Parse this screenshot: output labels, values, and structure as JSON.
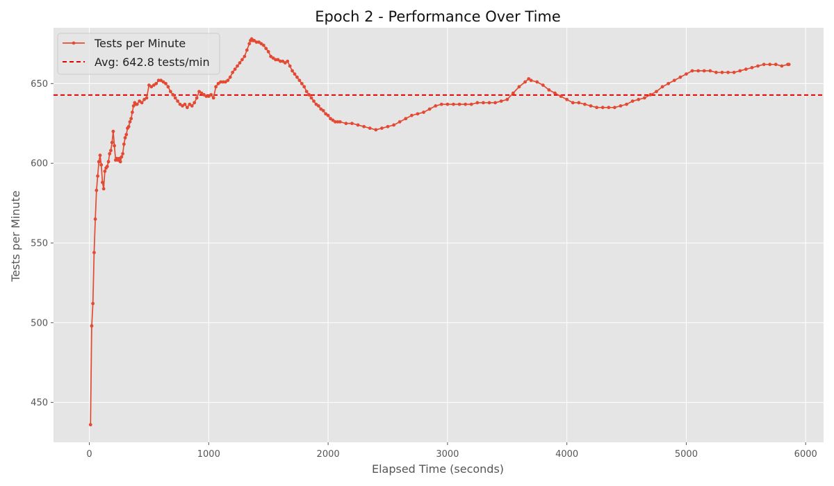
{
  "chart_data": {
    "type": "line",
    "title": "Epoch 2 - Performance Over Time",
    "xlabel": "Elapsed Time (seconds)",
    "ylabel": "Tests per Minute",
    "xlim": [
      -300,
      6150
    ],
    "ylim": [
      425,
      685
    ],
    "xticks": [
      0,
      1000,
      2000,
      3000,
      4000,
      5000,
      6000
    ],
    "yticks": [
      450,
      500,
      550,
      600,
      650
    ],
    "grid": true,
    "legend_position": "top-left",
    "colors": {
      "plot_background": "#e5e5e5",
      "grid": "#ffffff",
      "series_line": "#e24a33",
      "average_line": "#e60000"
    },
    "average": {
      "name": "Avg: 642.8 tests/min",
      "value": 642.8
    },
    "series": [
      {
        "name": "Tests per Minute",
        "points": [
          [
            10,
            436
          ],
          [
            20,
            498
          ],
          [
            30,
            512
          ],
          [
            40,
            544
          ],
          [
            50,
            565
          ],
          [
            60,
            583
          ],
          [
            70,
            592
          ],
          [
            80,
            601
          ],
          [
            90,
            605
          ],
          [
            100,
            599
          ],
          [
            110,
            588
          ],
          [
            120,
            584
          ],
          [
            130,
            595
          ],
          [
            140,
            597
          ],
          [
            150,
            598
          ],
          [
            160,
            601
          ],
          [
            170,
            606
          ],
          [
            180,
            608
          ],
          [
            190,
            613
          ],
          [
            200,
            620
          ],
          [
            210,
            611
          ],
          [
            220,
            602
          ],
          [
            230,
            603
          ],
          [
            240,
            602
          ],
          [
            250,
            603
          ],
          [
            260,
            601
          ],
          [
            270,
            604
          ],
          [
            280,
            606
          ],
          [
            290,
            612
          ],
          [
            300,
            616
          ],
          [
            310,
            618
          ],
          [
            320,
            622
          ],
          [
            330,
            623
          ],
          [
            340,
            626
          ],
          [
            350,
            628
          ],
          [
            360,
            632
          ],
          [
            370,
            636
          ],
          [
            380,
            638
          ],
          [
            390,
            637
          ],
          [
            400,
            637
          ],
          [
            420,
            639
          ],
          [
            440,
            638
          ],
          [
            460,
            640
          ],
          [
            480,
            641
          ],
          [
            500,
            649
          ],
          [
            520,
            648
          ],
          [
            540,
            649
          ],
          [
            560,
            650
          ],
          [
            580,
            652
          ],
          [
            600,
            652
          ],
          [
            620,
            651
          ],
          [
            640,
            650
          ],
          [
            660,
            648
          ],
          [
            680,
            645
          ],
          [
            700,
            643
          ],
          [
            720,
            641
          ],
          [
            740,
            639
          ],
          [
            760,
            637
          ],
          [
            780,
            636
          ],
          [
            800,
            637
          ],
          [
            820,
            635
          ],
          [
            840,
            637
          ],
          [
            860,
            636
          ],
          [
            880,
            638
          ],
          [
            900,
            641
          ],
          [
            920,
            645
          ],
          [
            940,
            644
          ],
          [
            960,
            643
          ],
          [
            980,
            642
          ],
          [
            1000,
            642
          ],
          [
            1020,
            643
          ],
          [
            1040,
            641
          ],
          [
            1060,
            648
          ],
          [
            1080,
            650
          ],
          [
            1100,
            651
          ],
          [
            1120,
            651
          ],
          [
            1140,
            651
          ],
          [
            1160,
            652
          ],
          [
            1180,
            654
          ],
          [
            1200,
            657
          ],
          [
            1220,
            659
          ],
          [
            1240,
            661
          ],
          [
            1260,
            663
          ],
          [
            1280,
            665
          ],
          [
            1300,
            667
          ],
          [
            1320,
            671
          ],
          [
            1340,
            675
          ],
          [
            1350,
            677
          ],
          [
            1360,
            678
          ],
          [
            1370,
            677
          ],
          [
            1380,
            677
          ],
          [
            1400,
            676
          ],
          [
            1420,
            676
          ],
          [
            1440,
            675
          ],
          [
            1460,
            674
          ],
          [
            1480,
            672
          ],
          [
            1500,
            670
          ],
          [
            1520,
            667
          ],
          [
            1540,
            666
          ],
          [
            1560,
            665
          ],
          [
            1580,
            665
          ],
          [
            1600,
            664
          ],
          [
            1620,
            664
          ],
          [
            1640,
            663
          ],
          [
            1660,
            664
          ],
          [
            1680,
            661
          ],
          [
            1700,
            658
          ],
          [
            1720,
            656
          ],
          [
            1740,
            654
          ],
          [
            1760,
            652
          ],
          [
            1780,
            650
          ],
          [
            1800,
            648
          ],
          [
            1820,
            645
          ],
          [
            1840,
            643
          ],
          [
            1860,
            641
          ],
          [
            1880,
            639
          ],
          [
            1900,
            637
          ],
          [
            1920,
            636
          ],
          [
            1940,
            634
          ],
          [
            1960,
            633
          ],
          [
            1980,
            631
          ],
          [
            2000,
            630
          ],
          [
            2020,
            628
          ],
          [
            2040,
            627
          ],
          [
            2060,
            626
          ],
          [
            2080,
            626
          ],
          [
            2100,
            626
          ],
          [
            2150,
            625
          ],
          [
            2200,
            625
          ],
          [
            2250,
            624
          ],
          [
            2300,
            623
          ],
          [
            2350,
            622
          ],
          [
            2400,
            621
          ],
          [
            2450,
            622
          ],
          [
            2500,
            623
          ],
          [
            2550,
            624
          ],
          [
            2600,
            626
          ],
          [
            2650,
            628
          ],
          [
            2700,
            630
          ],
          [
            2750,
            631
          ],
          [
            2800,
            632
          ],
          [
            2850,
            634
          ],
          [
            2900,
            636
          ],
          [
            2950,
            637
          ],
          [
            3000,
            637
          ],
          [
            3050,
            637
          ],
          [
            3100,
            637
          ],
          [
            3150,
            637
          ],
          [
            3200,
            637
          ],
          [
            3250,
            638
          ],
          [
            3300,
            638
          ],
          [
            3350,
            638
          ],
          [
            3400,
            638
          ],
          [
            3450,
            639
          ],
          [
            3500,
            640
          ],
          [
            3550,
            644
          ],
          [
            3600,
            648
          ],
          [
            3650,
            651
          ],
          [
            3680,
            653
          ],
          [
            3700,
            652
          ],
          [
            3750,
            651
          ],
          [
            3800,
            649
          ],
          [
            3850,
            646
          ],
          [
            3900,
            644
          ],
          [
            3950,
            642
          ],
          [
            4000,
            640
          ],
          [
            4050,
            638
          ],
          [
            4100,
            638
          ],
          [
            4150,
            637
          ],
          [
            4200,
            636
          ],
          [
            4250,
            635
          ],
          [
            4300,
            635
          ],
          [
            4350,
            635
          ],
          [
            4400,
            635
          ],
          [
            4450,
            636
          ],
          [
            4500,
            637
          ],
          [
            4550,
            639
          ],
          [
            4600,
            640
          ],
          [
            4650,
            641
          ],
          [
            4700,
            643
          ],
          [
            4750,
            645
          ],
          [
            4800,
            648
          ],
          [
            4850,
            650
          ],
          [
            4900,
            652
          ],
          [
            4950,
            654
          ],
          [
            5000,
            656
          ],
          [
            5050,
            658
          ],
          [
            5100,
            658
          ],
          [
            5150,
            658
          ],
          [
            5200,
            658
          ],
          [
            5250,
            657
          ],
          [
            5300,
            657
          ],
          [
            5350,
            657
          ],
          [
            5400,
            657
          ],
          [
            5450,
            658
          ],
          [
            5500,
            659
          ],
          [
            5550,
            660
          ],
          [
            5600,
            661
          ],
          [
            5650,
            662
          ],
          [
            5700,
            662
          ],
          [
            5750,
            662
          ],
          [
            5800,
            661
          ],
          [
            5850,
            662
          ],
          [
            5860,
            662
          ]
        ]
      }
    ]
  }
}
